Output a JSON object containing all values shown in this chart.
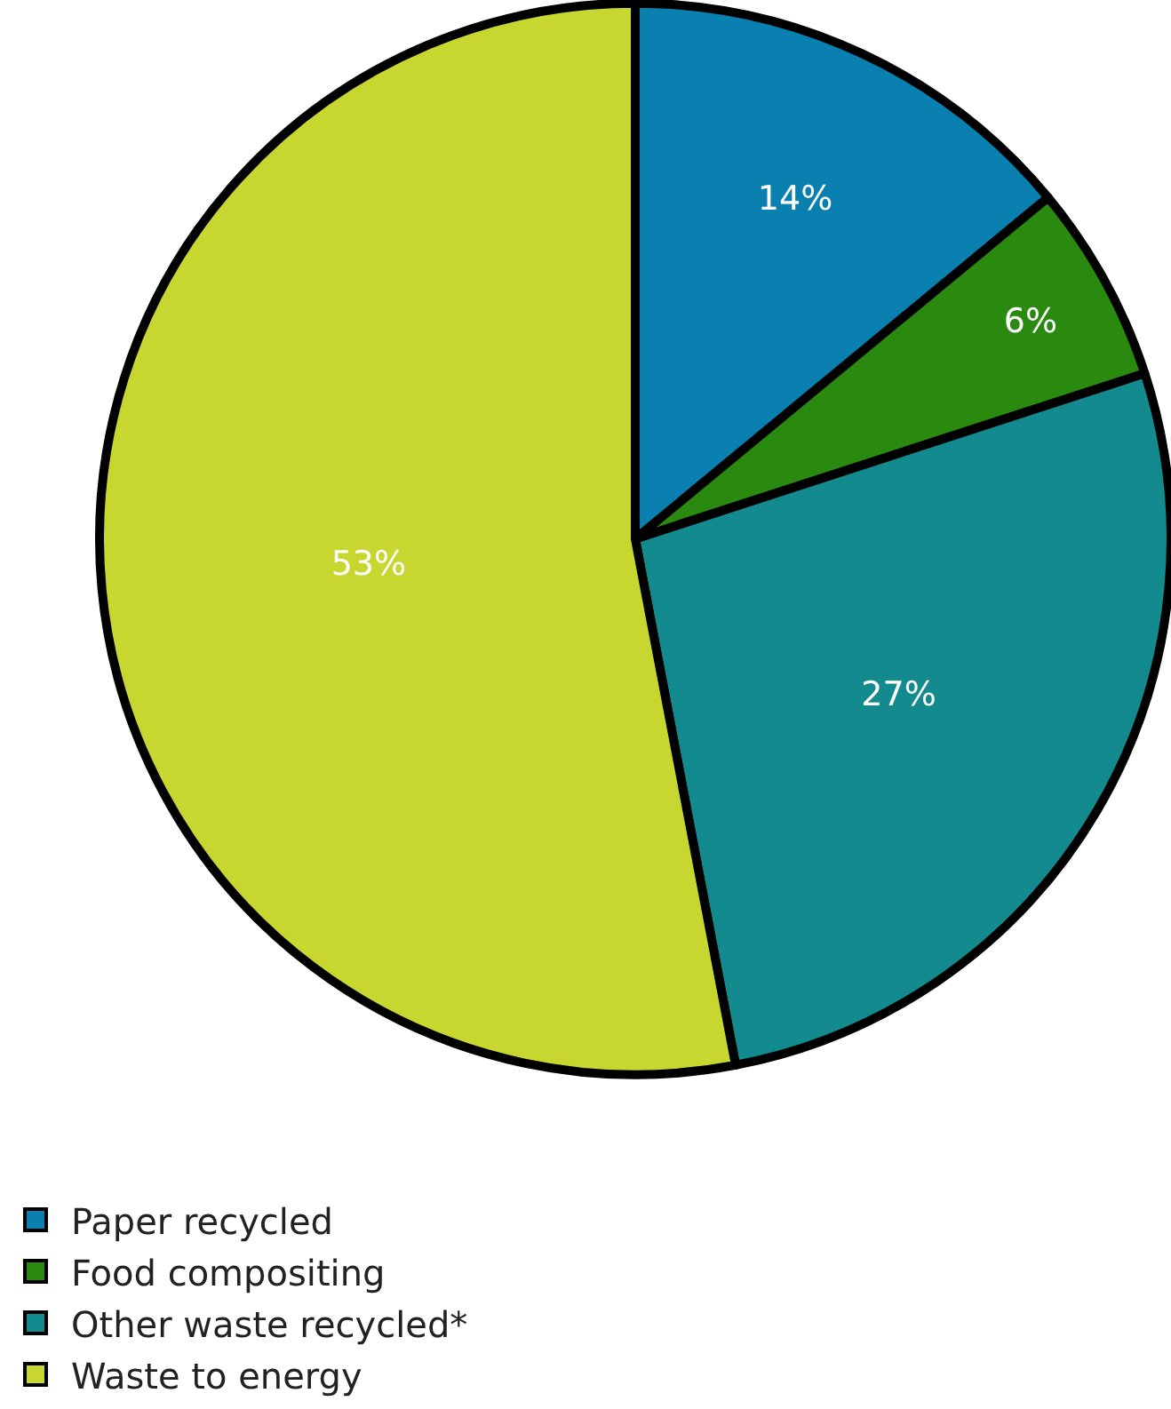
{
  "chart_data": {
    "type": "pie",
    "categories": [
      "Paper recycled",
      "Food compositing",
      "Other waste recycled*",
      "Waste to energy"
    ],
    "values": [
      14,
      6,
      27,
      53
    ],
    "colors": [
      "#0a80b0",
      "#2a8a10",
      "#128a8e",
      "#c8d630"
    ],
    "value_labels": [
      "14%",
      "6%",
      "27%",
      "53%"
    ],
    "legend": "bottom left"
  }
}
